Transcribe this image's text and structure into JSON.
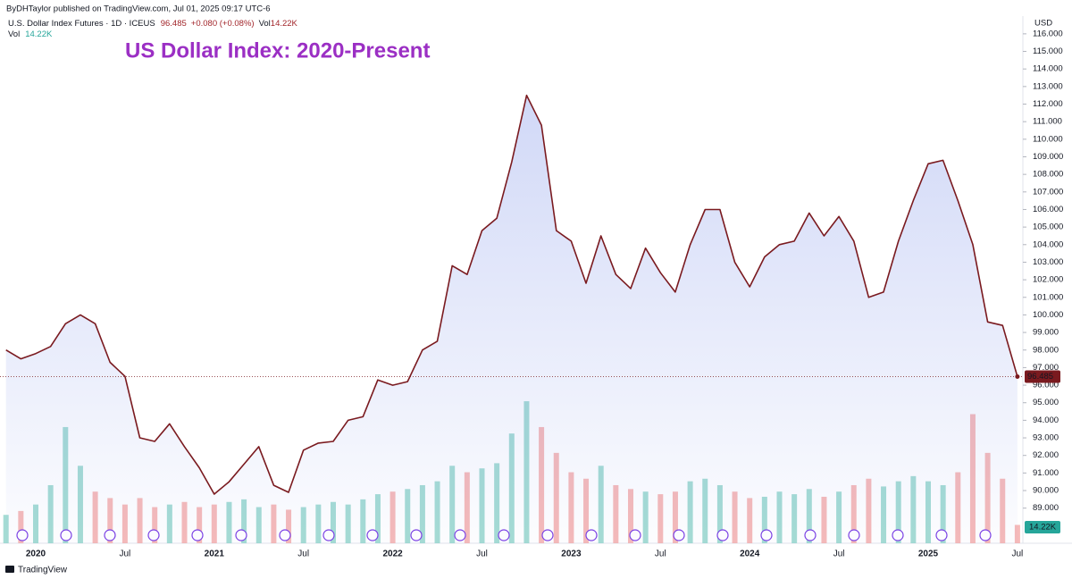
{
  "header": {
    "byline": "ByDHTaylor published on TradingView.com, Jul 01, 2025 09:17 UTC-6",
    "symbol": "U.S. Dollar Index Futures · 1D · ICEUS",
    "change": "+0.080 (+0.08%)",
    "vol_title": "Vol",
    "vol_label": "14.22K",
    "brand": "TradingView"
  },
  "chart_data": {
    "type": "line",
    "title": "US Dollar Index: 2020-Present",
    "y_axis_unit": "USD",
    "categories": [
      null,
      null,
      "2020",
      null,
      null,
      null,
      null,
      null,
      "Jul",
      null,
      null,
      null,
      null,
      null,
      "2021",
      null,
      null,
      null,
      null,
      null,
      "Jul",
      null,
      null,
      null,
      null,
      null,
      "2022",
      null,
      null,
      null,
      null,
      null,
      "Jul",
      null,
      null,
      null,
      null,
      null,
      "2023",
      null,
      null,
      null,
      null,
      null,
      "Jul",
      null,
      null,
      null,
      null,
      null,
      "2024",
      null,
      null,
      null,
      null,
      null,
      "Jul",
      null,
      null,
      null,
      null,
      null,
      "2025",
      null,
      null,
      null,
      null,
      null,
      "Jul"
    ],
    "series": [
      {
        "name": "U.S. Dollar Index Futures",
        "color": "#7a1a1f",
        "fill": "#6f86e6",
        "values": [
          98.0,
          97.5,
          97.8,
          98.2,
          99.5,
          100.0,
          99.5,
          97.3,
          96.5,
          93.0,
          92.8,
          93.8,
          92.5,
          91.3,
          89.8,
          90.5,
          91.5,
          92.5,
          90.3,
          89.9,
          92.3,
          92.7,
          92.8,
          94.0,
          94.2,
          96.3,
          96.0,
          96.2,
          98.0,
          98.5,
          102.8,
          102.3,
          104.8,
          105.5,
          108.7,
          112.5,
          110.8,
          104.8,
          104.2,
          101.8,
          104.5,
          102.3,
          101.5,
          103.8,
          102.4,
          101.3,
          104.0,
          106.0,
          106.0,
          103.0,
          101.6,
          103.3,
          104.0,
          104.2,
          105.8,
          104.5,
          105.6,
          104.2,
          101.0,
          101.3,
          104.2,
          106.5,
          108.6,
          108.8,
          106.5,
          104.0,
          99.6,
          99.4,
          96.485
        ]
      },
      {
        "name": "Vol",
        "axis": "y2",
        "up_color": "#8fd3c9",
        "down_color": "#f4a9a8",
        "values": [
          22,
          25,
          30,
          45,
          90,
          60,
          40,
          35,
          30,
          35,
          28,
          30,
          32,
          28,
          30,
          32,
          34,
          28,
          30,
          26,
          28,
          30,
          32,
          30,
          34,
          38,
          40,
          42,
          45,
          48,
          60,
          55,
          58,
          62,
          85,
          110,
          90,
          70,
          55,
          50,
          60,
          45,
          42,
          40,
          38,
          40,
          48,
          50,
          45,
          40,
          35,
          36,
          40,
          38,
          42,
          36,
          40,
          45,
          50,
          44,
          48,
          52,
          48,
          45,
          55,
          100,
          70,
          50,
          14.22
        ]
      }
    ],
    "ylim": [
      87.0,
      116.4
    ],
    "yticks": [
      {
        "value": 89,
        "label": "89.000"
      },
      {
        "value": 90,
        "label": "90.000"
      },
      {
        "value": 91,
        "label": "91.000"
      },
      {
        "value": 92,
        "label": "92.000"
      },
      {
        "value": 93,
        "label": "93.000"
      },
      {
        "value": 94,
        "label": "94.000"
      },
      {
        "value": 95,
        "label": "95.000"
      },
      {
        "value": 96,
        "label": "96.000"
      },
      {
        "value": 97,
        "label": "97.000"
      },
      {
        "value": 98,
        "label": "98.000"
      },
      {
        "value": 99,
        "label": "99.000"
      },
      {
        "value": 100,
        "label": "100.000"
      },
      {
        "value": 101,
        "label": "101.000"
      },
      {
        "value": 102,
        "label": "102.000"
      },
      {
        "value": 103,
        "label": "103.000"
      },
      {
        "value": 104,
        "label": "104.000"
      },
      {
        "value": 105,
        "label": "105.000"
      },
      {
        "value": 106,
        "label": "106.000"
      },
      {
        "value": 107,
        "label": "107.000"
      },
      {
        "value": 108,
        "label": "108.000"
      },
      {
        "value": 109,
        "label": "109.000"
      },
      {
        "value": 110,
        "label": "110.000"
      },
      {
        "value": 111,
        "label": "111.000"
      },
      {
        "value": 112,
        "label": "112.000"
      },
      {
        "value": 113,
        "label": "113.000"
      },
      {
        "value": 114,
        "label": "114.000"
      },
      {
        "value": 115,
        "label": "115.000"
      },
      {
        "value": 116,
        "label": "116.000"
      }
    ],
    "y2lim": [
      0,
      400
    ],
    "grid": false
  }
}
